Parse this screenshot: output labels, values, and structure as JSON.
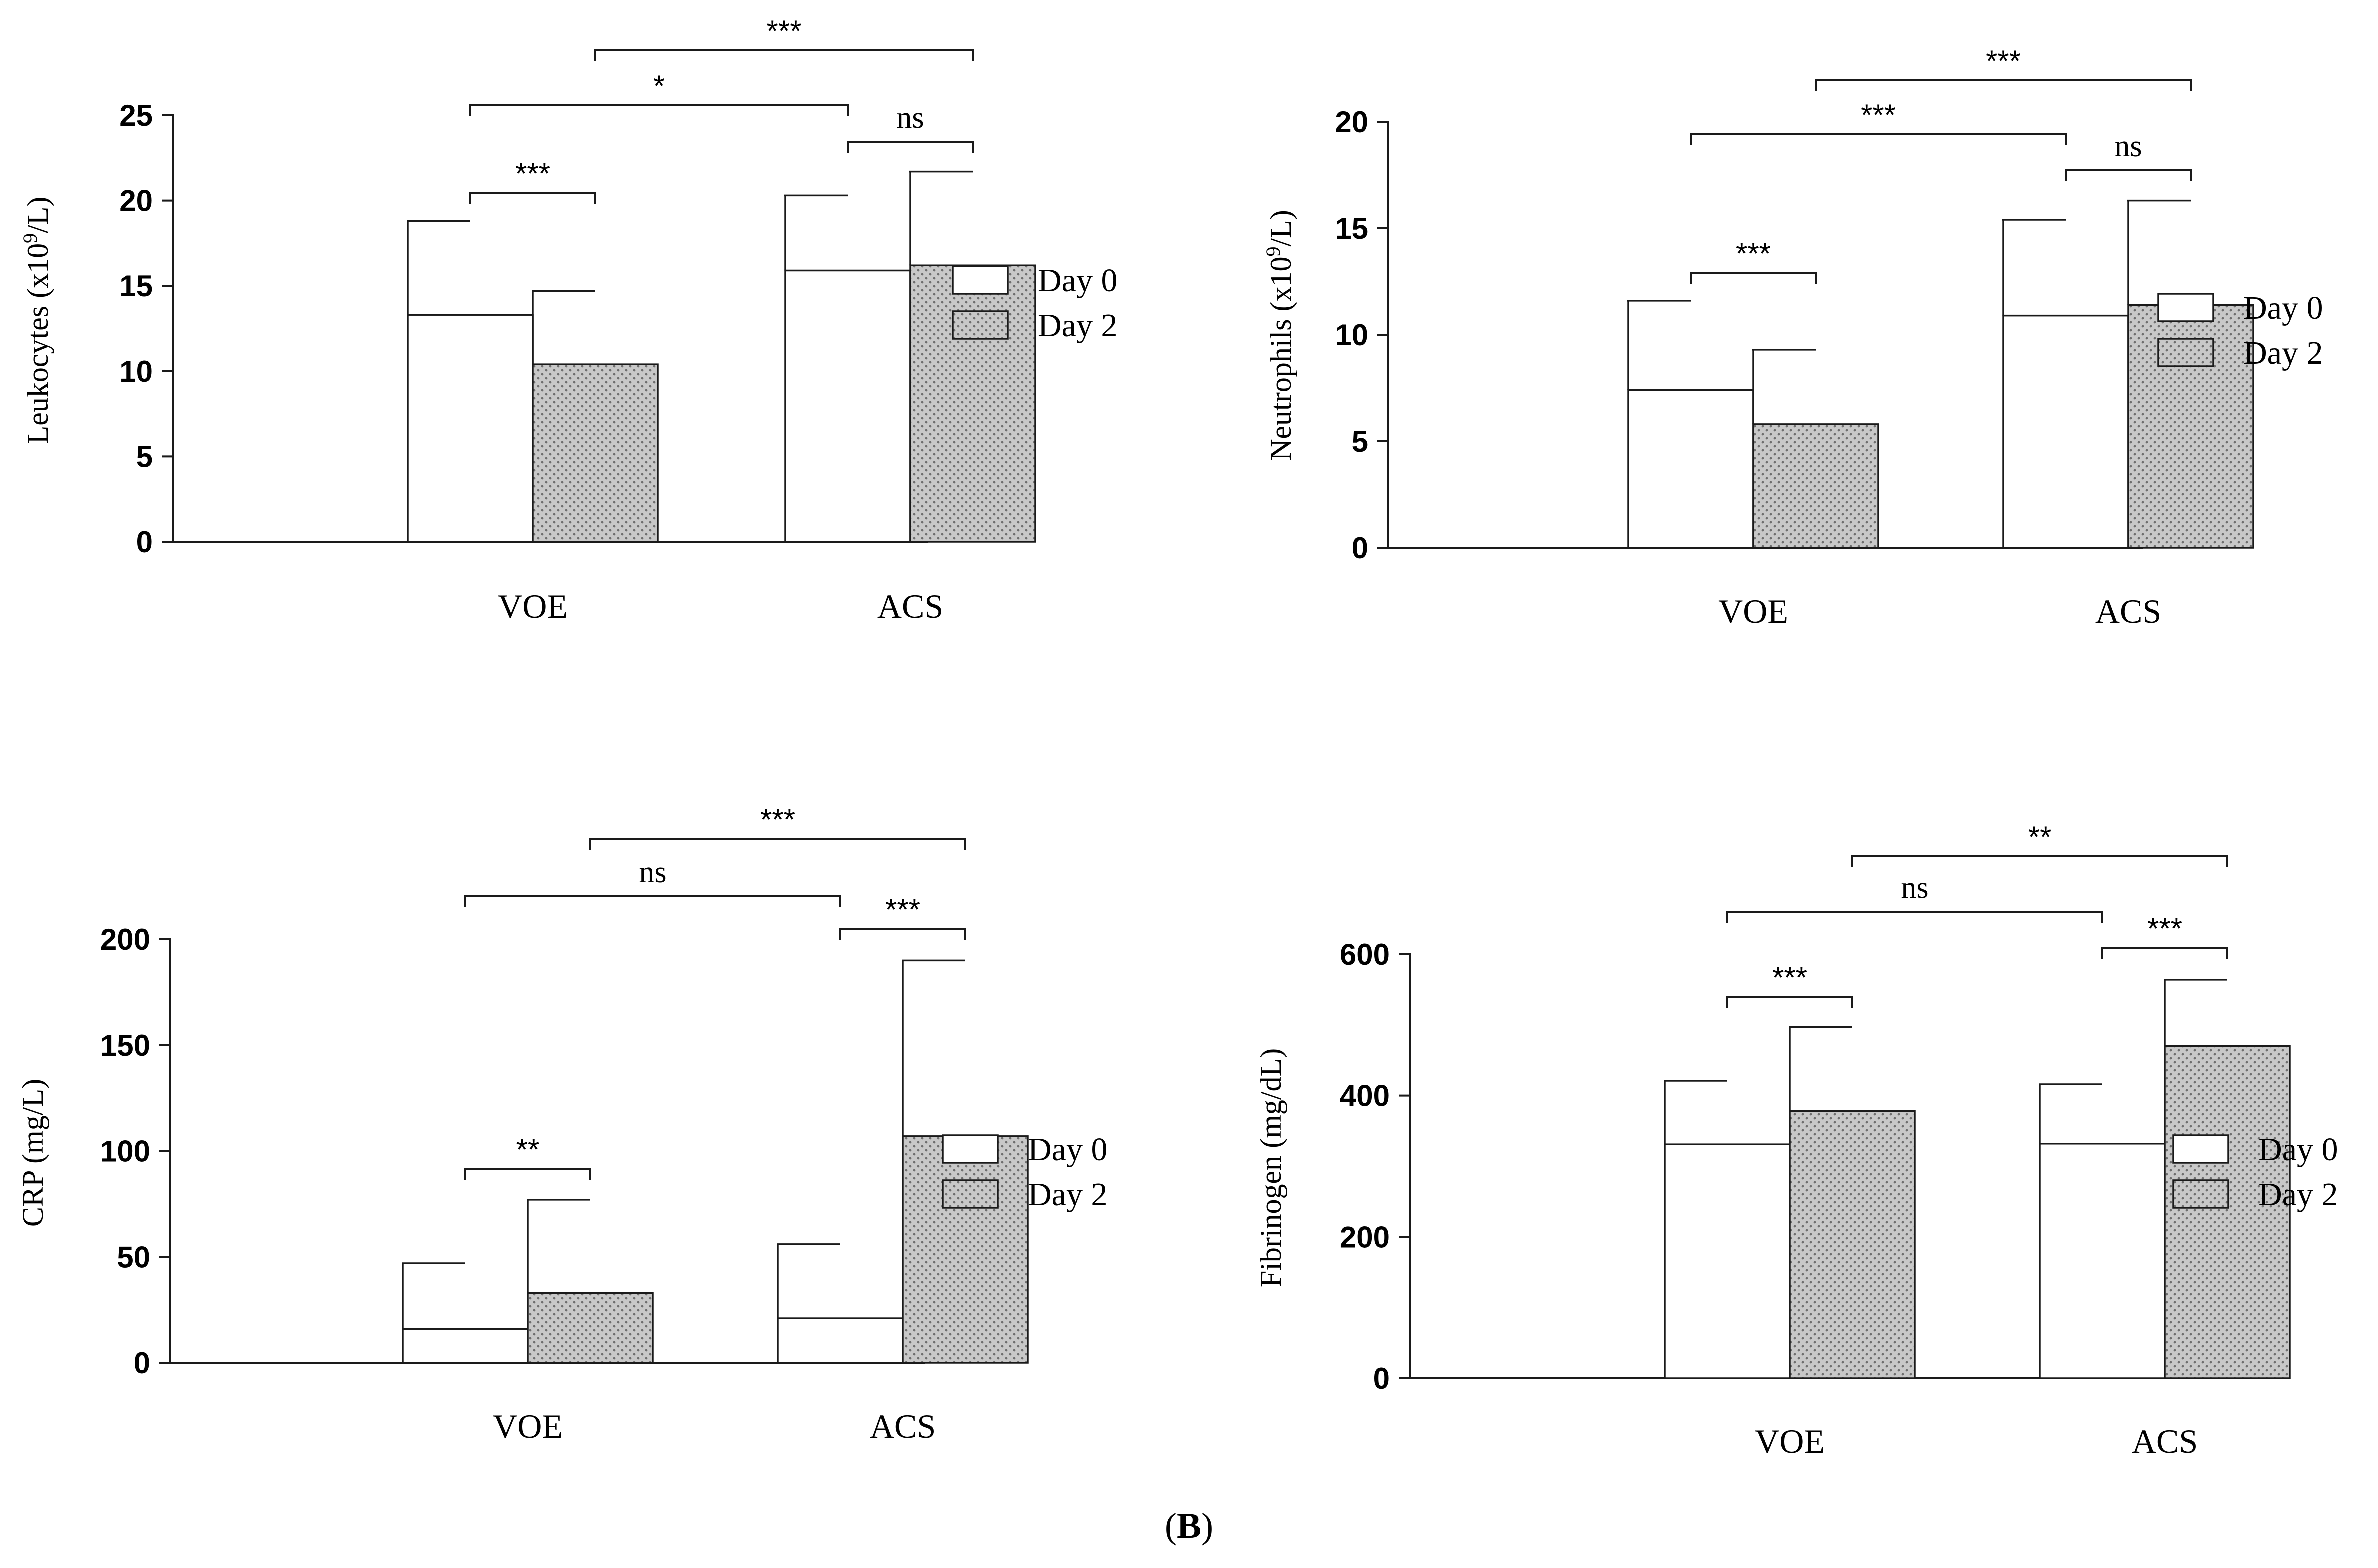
{
  "chart_data": [
    {
      "type": "bar",
      "title": "",
      "xlabel": "",
      "ylabel_parts": [
        "Leukocytes (x10",
        "9",
        "/L)"
      ],
      "categories": [
        "VOE",
        "ACS"
      ],
      "series": [
        {
          "name": "Day 0",
          "values": [
            13.3,
            15.9
          ],
          "sd": [
            5.5,
            4.4
          ]
        },
        {
          "name": "Day 2",
          "values": [
            10.4,
            16.2
          ],
          "sd": [
            4.3,
            5.5
          ]
        }
      ],
      "ylim": [
        0,
        25
      ],
      "yticks": [
        "0",
        "5",
        "10",
        "15",
        "20",
        "25"
      ],
      "legend": [
        "Day 0",
        "Day 2"
      ],
      "comparisons": [
        {
          "from": "VOE Day 0",
          "to": "VOE Day 2",
          "label": "***"
        },
        {
          "from": "ACS Day 0",
          "to": "ACS Day 2",
          "label": "ns"
        },
        {
          "from": "VOE Day 0",
          "to": "ACS Day 0",
          "label": "*"
        },
        {
          "from": "VOE Day 2",
          "to": "ACS Day 2",
          "label": "***"
        }
      ]
    },
    {
      "type": "bar",
      "title": "",
      "xlabel": "",
      "ylabel_parts": [
        "Neutrophils (x10",
        "9",
        "/L)"
      ],
      "categories": [
        "VOE",
        "ACS"
      ],
      "series": [
        {
          "name": "Day 0",
          "values": [
            7.4,
            10.9
          ],
          "sd": [
            4.2,
            4.5
          ]
        },
        {
          "name": "Day 2",
          "values": [
            5.8,
            11.4
          ],
          "sd": [
            3.5,
            4.9
          ]
        }
      ],
      "ylim": [
        0,
        20
      ],
      "yticks": [
        "0",
        "5",
        "10",
        "15",
        "20"
      ],
      "legend": [
        "Day 0",
        "Day 2"
      ],
      "comparisons": [
        {
          "from": "VOE Day 0",
          "to": "VOE Day 2",
          "label": "***"
        },
        {
          "from": "ACS Day 0",
          "to": "ACS Day 2",
          "label": "ns"
        },
        {
          "from": "VOE Day 0",
          "to": "ACS Day 0",
          "label": "***"
        },
        {
          "from": "VOE Day 2",
          "to": "ACS Day 2",
          "label": "***"
        }
      ]
    },
    {
      "type": "bar",
      "title": "",
      "xlabel": "",
      "ylabel_parts": [
        "CRP (mg/L)"
      ],
      "categories": [
        "VOE",
        "ACS"
      ],
      "series": [
        {
          "name": "Day 0",
          "values": [
            16,
            21
          ],
          "sd": [
            31,
            35
          ]
        },
        {
          "name": "Day 2",
          "values": [
            33,
            107
          ],
          "sd": [
            44,
            83
          ]
        }
      ],
      "ylim": [
        0,
        200
      ],
      "yticks": [
        "0",
        "50",
        "100",
        "150",
        "200"
      ],
      "legend": [
        "Day 0",
        "Day 2"
      ],
      "comparisons": [
        {
          "from": "VOE Day 0",
          "to": "VOE Day 2",
          "label": "**"
        },
        {
          "from": "ACS Day 0",
          "to": "ACS Day 2",
          "label": "***"
        },
        {
          "from": "VOE Day 0",
          "to": "ACS Day 0",
          "label": "ns"
        },
        {
          "from": "VOE Day 2",
          "to": "ACS Day 2",
          "label": "***"
        }
      ]
    },
    {
      "type": "bar",
      "title": "",
      "xlabel": "",
      "ylabel_parts": [
        "Fibrinogen (mg/dL)"
      ],
      "categories": [
        "VOE",
        "ACS"
      ],
      "series": [
        {
          "name": "Day 0",
          "values": [
            331,
            332
          ],
          "sd": [
            90,
            84
          ]
        },
        {
          "name": "Day 2",
          "values": [
            378,
            470
          ],
          "sd": [
            119,
            94
          ]
        }
      ],
      "ylim": [
        0,
        600
      ],
      "yticks": [
        "0",
        "200",
        "400",
        "600"
      ],
      "legend": [
        "Day 0",
        "Day 2"
      ],
      "comparisons": [
        {
          "from": "VOE Day 0",
          "to": "VOE Day 2",
          "label": "***"
        },
        {
          "from": "ACS Day 0",
          "to": "ACS Day 2",
          "label": "***"
        },
        {
          "from": "VOE Day 0",
          "to": "ACS Day 0",
          "label": "ns"
        },
        {
          "from": "VOE Day 2",
          "to": "ACS Day 2",
          "label": "**"
        }
      ]
    }
  ],
  "figure_label": {
    "open": "(",
    "letter": "B",
    "close": ")"
  },
  "colors": {
    "axis": "#1a1a1a",
    "day0_fill": "#ffffff",
    "day2_fill": "#c8c8c8",
    "day2_dots": "#6e6e6e"
  }
}
